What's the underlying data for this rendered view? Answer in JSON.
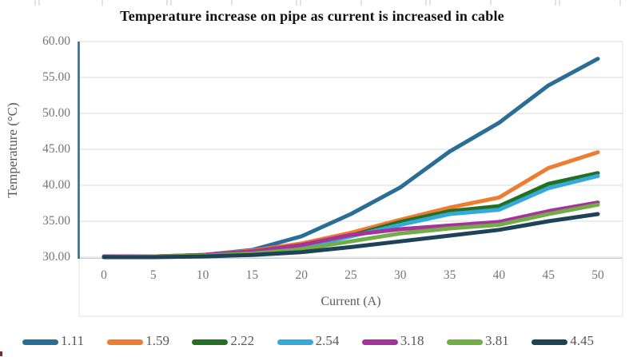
{
  "chart_data": {
    "type": "line",
    "title": "Temperature increase on pipe as current is increased in cable",
    "xlabel": "Current (A)",
    "ylabel": "Temperature (°C)",
    "x": [
      0,
      5,
      10,
      15,
      20,
      25,
      30,
      35,
      40,
      45,
      50
    ],
    "x_tick_labels": [
      "0",
      "5",
      "10",
      "15",
      "20",
      "25",
      "30",
      "35",
      "40",
      "45",
      "50"
    ],
    "y_tick_labels": [
      "60.00",
      "55.00",
      "50.00",
      "45.00",
      "40.00",
      "35.00",
      "30.00"
    ],
    "ylim": [
      30,
      60
    ],
    "ytick_step": 5,
    "grid": true,
    "legend_position": "bottom",
    "series": [
      {
        "name": "1.11",
        "color": "#2a6e96",
        "values": [
          30.1,
          30.1,
          30.3,
          31.0,
          32.9,
          36.0,
          39.7,
          44.7,
          48.7,
          53.9,
          57.6
        ]
      },
      {
        "name": "1.59",
        "color": "#ed7d31",
        "values": [
          30.1,
          30.1,
          30.3,
          30.9,
          31.9,
          33.4,
          35.2,
          36.9,
          38.3,
          42.4,
          44.6
        ]
      },
      {
        "name": "2.22",
        "color": "#237023",
        "values": [
          30.1,
          30.1,
          30.2,
          30.7,
          31.5,
          33.0,
          34.9,
          36.4,
          37.1,
          40.2,
          41.7
        ]
      },
      {
        "name": "2.54",
        "color": "#35a8dc",
        "values": [
          30.1,
          30.1,
          30.2,
          30.6,
          31.3,
          32.9,
          34.5,
          36.0,
          36.6,
          39.6,
          41.3
        ]
      },
      {
        "name": "3.18",
        "color": "#a53399",
        "values": [
          30.1,
          30.1,
          30.3,
          30.8,
          31.7,
          33.1,
          33.9,
          34.4,
          34.9,
          36.4,
          37.6
        ]
      },
      {
        "name": "3.81",
        "color": "#70ad47",
        "values": [
          30.0,
          30.1,
          30.2,
          30.5,
          31.1,
          32.2,
          33.3,
          34.0,
          34.5,
          36.0,
          37.3
        ]
      },
      {
        "name": "4.45",
        "color": "#1e4257",
        "values": [
          30.0,
          30.0,
          30.1,
          30.3,
          30.7,
          31.4,
          32.2,
          33.0,
          33.8,
          35.0,
          36.0
        ]
      }
    ]
  },
  "colors": {
    "y_axis_line": "#2a6e96",
    "gridline": "#d9d9d9",
    "axis_baseline": "#c9c9c9",
    "border": "#e2e2e2",
    "tick_text": "#757575",
    "legend_text": "#595959"
  }
}
